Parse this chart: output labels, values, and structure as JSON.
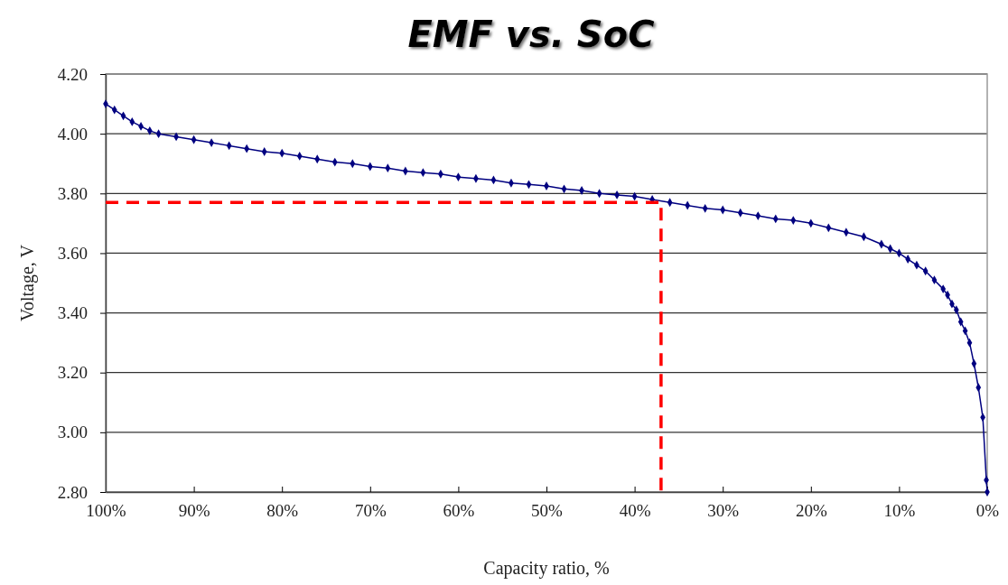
{
  "chart_data": {
    "type": "line",
    "title": "EMF vs. SoC",
    "xlabel": "Capacity ratio, %",
    "ylabel": "Voltage, V",
    "xlim": [
      100,
      0
    ],
    "xticks": [
      {
        "value": 100,
        "label": "100%"
      },
      {
        "value": 90,
        "label": "90%"
      },
      {
        "value": 80,
        "label": "80%"
      },
      {
        "value": 70,
        "label": "70%"
      },
      {
        "value": 60,
        "label": "60%"
      },
      {
        "value": 50,
        "label": "50%"
      },
      {
        "value": 40,
        "label": "40%"
      },
      {
        "value": 30,
        "label": "30%"
      },
      {
        "value": 20,
        "label": "20%"
      },
      {
        "value": 10,
        "label": "10%"
      },
      {
        "value": 0,
        "label": "0%"
      }
    ],
    "ylim": [
      2.8,
      4.2
    ],
    "yticks": [
      {
        "value": 2.8,
        "label": "2.80"
      },
      {
        "value": 3.0,
        "label": "3.00"
      },
      {
        "value": 3.2,
        "label": "3.20"
      },
      {
        "value": 3.4,
        "label": "3.40"
      },
      {
        "value": 3.6,
        "label": "3.60"
      },
      {
        "value": 3.8,
        "label": "3.80"
      },
      {
        "value": 4.0,
        "label": "4.00"
      },
      {
        "value": 4.2,
        "label": "4.20"
      }
    ],
    "grid": "y",
    "series": [
      {
        "color": "#000080",
        "marker": "diamond",
        "line_style": "solid",
        "x": [
          100,
          99,
          98,
          97,
          96,
          95,
          94,
          92,
          90,
          88,
          86,
          84,
          82,
          80,
          78,
          76,
          74,
          72,
          70,
          68,
          66,
          64,
          62,
          60,
          58,
          56,
          54,
          52,
          50,
          48,
          46,
          44,
          42,
          40,
          38,
          36,
          34,
          32,
          30,
          28,
          26,
          24,
          22,
          20,
          18,
          16,
          14,
          12,
          11,
          10,
          9,
          8,
          7,
          6,
          5,
          4.5,
          4,
          3.5,
          3,
          2.5,
          2,
          1.5,
          1,
          0.5,
          0.1,
          0
        ],
        "values": [
          4.1,
          4.08,
          4.06,
          4.04,
          4.025,
          4.01,
          4.0,
          3.99,
          3.98,
          3.97,
          3.96,
          3.95,
          3.94,
          3.935,
          3.925,
          3.915,
          3.905,
          3.9,
          3.89,
          3.885,
          3.875,
          3.87,
          3.865,
          3.855,
          3.85,
          3.845,
          3.835,
          3.83,
          3.825,
          3.815,
          3.81,
          3.8,
          3.795,
          3.79,
          3.78,
          3.77,
          3.76,
          3.75,
          3.745,
          3.735,
          3.725,
          3.715,
          3.71,
          3.7,
          3.685,
          3.67,
          3.655,
          3.63,
          3.615,
          3.6,
          3.58,
          3.56,
          3.54,
          3.51,
          3.48,
          3.46,
          3.43,
          3.41,
          3.37,
          3.34,
          3.3,
          3.23,
          3.15,
          3.05,
          2.84,
          2.8
        ]
      },
      {
        "type": "line",
        "color": "#ff0000",
        "marker": "none",
        "line_style": "dashed",
        "x": [
          100,
          37,
          37
        ],
        "values": [
          3.77,
          3.77,
          2.8
        ]
      }
    ]
  }
}
